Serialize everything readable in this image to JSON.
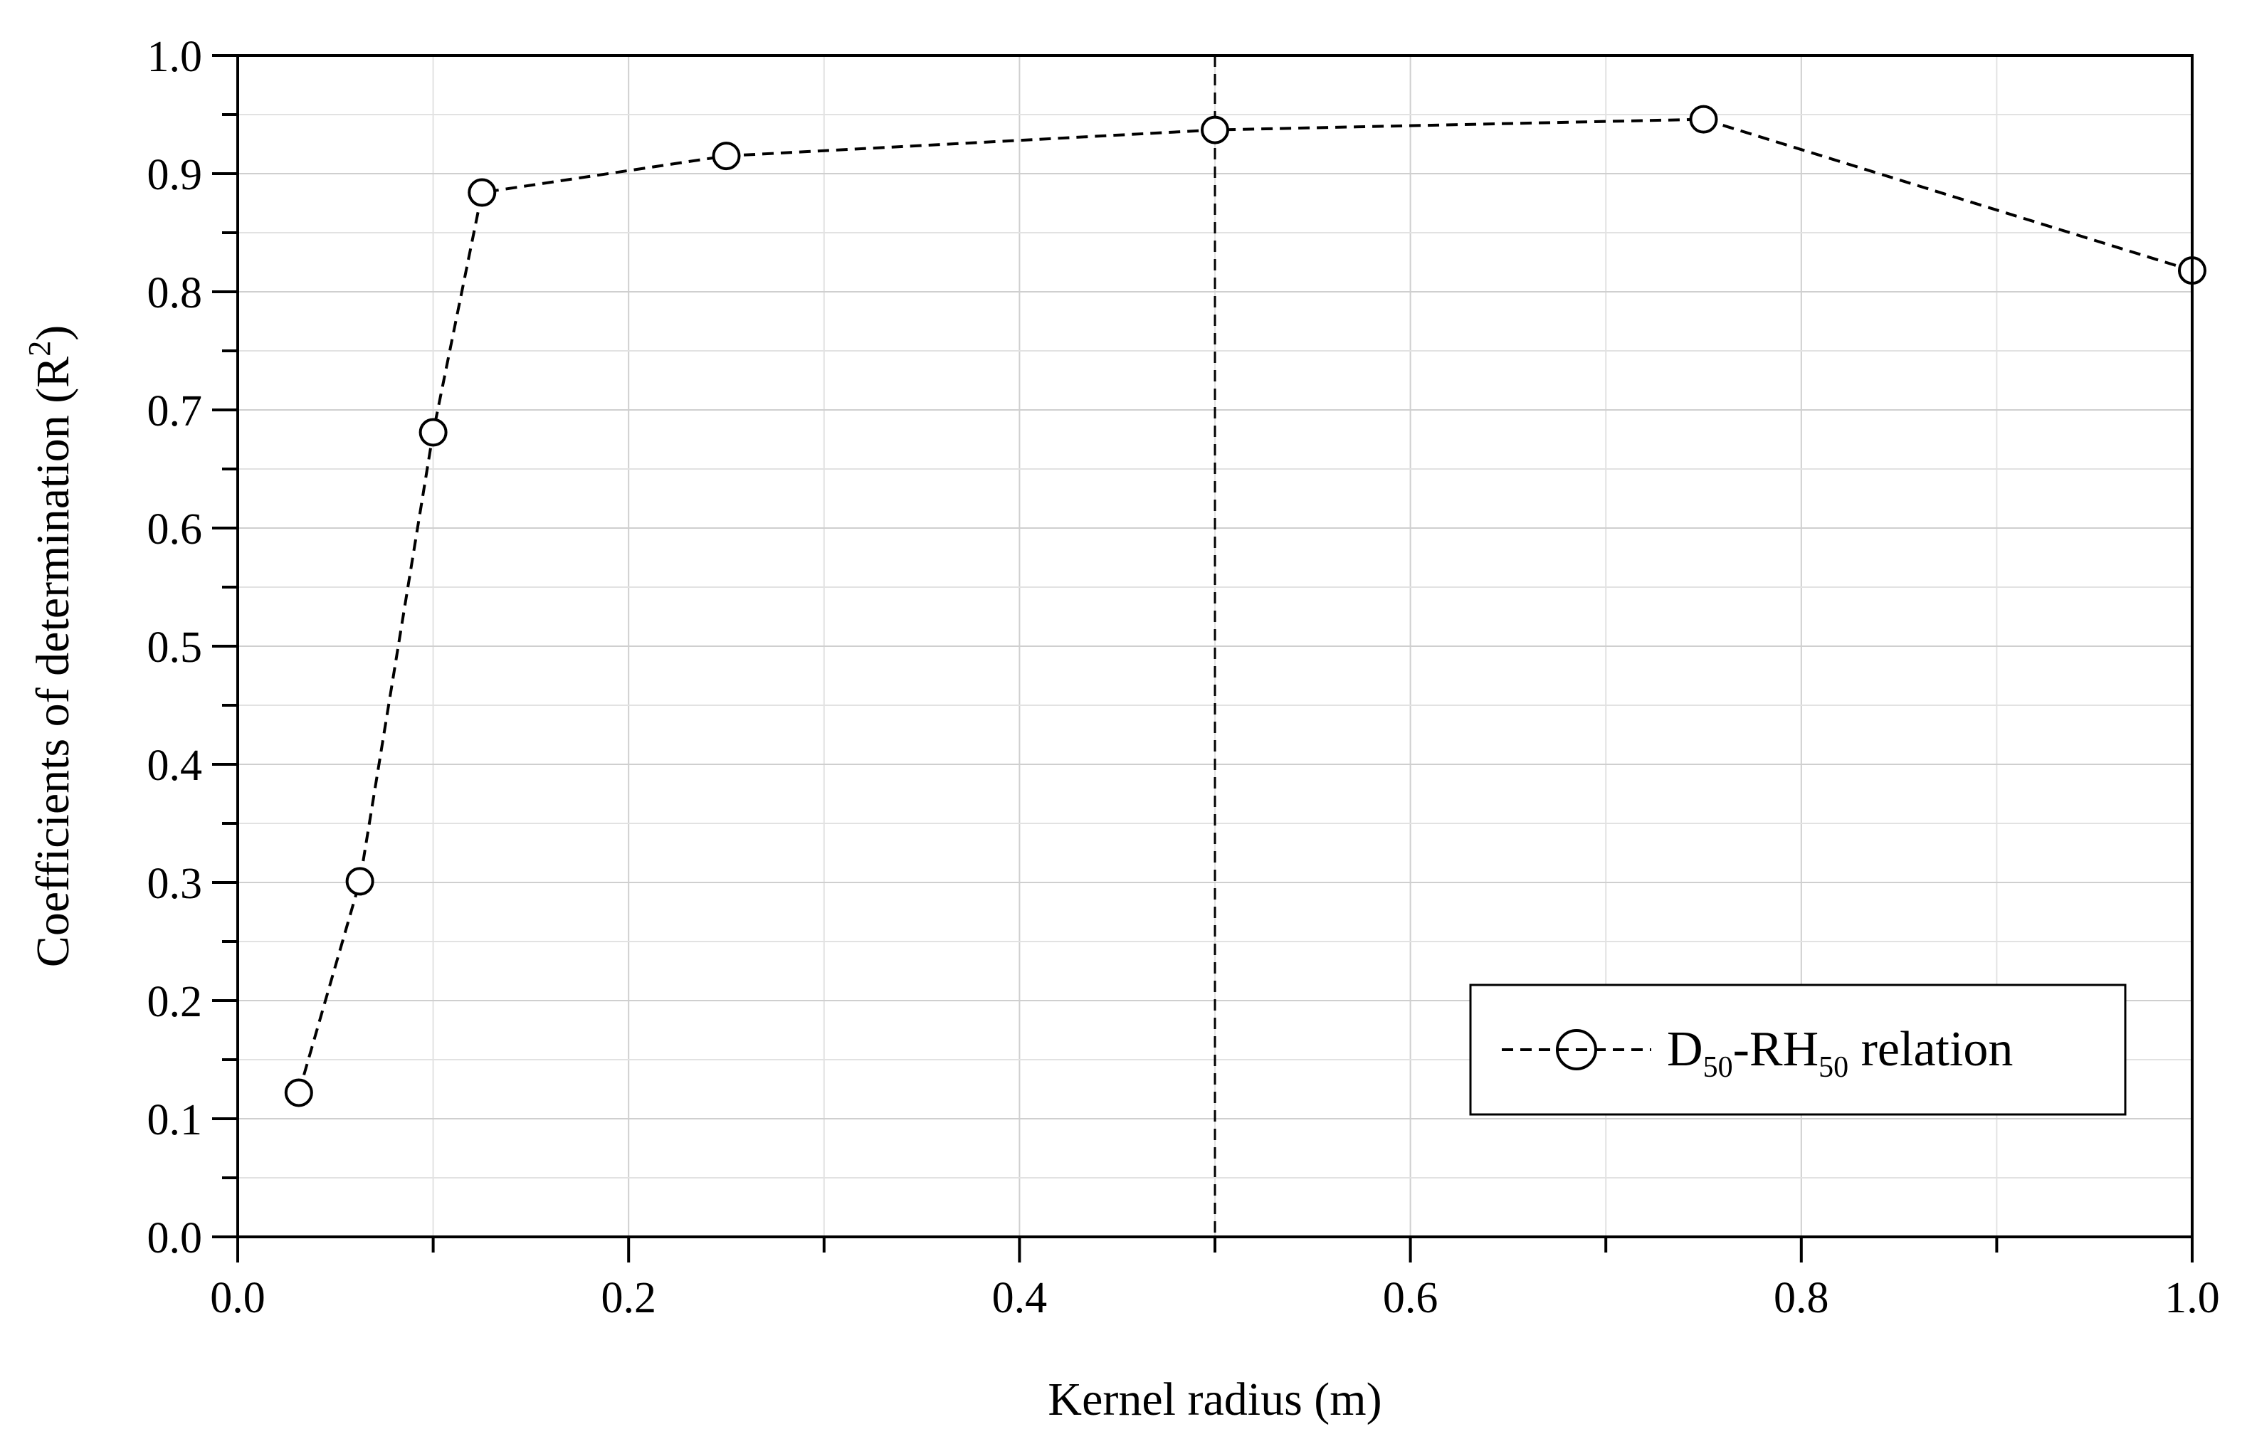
{
  "chart_data": {
    "type": "line",
    "xlabel": "Kernel radius  (m)",
    "ylabel_main": "Coefficients of determination (R",
    "ylabel_sup": "2",
    "ylabel_close": ")",
    "xlim": [
      0.0,
      1.0
    ],
    "ylim": [
      0.0,
      1.0
    ],
    "x_ticks": [
      "0.0",
      "0.2",
      "0.4",
      "0.6",
      "0.8",
      "1.0"
    ],
    "y_ticks": [
      "0.0",
      "0.1",
      "0.2",
      "0.3",
      "0.4",
      "0.5",
      "0.6",
      "0.7",
      "0.8",
      "0.9",
      "1.0"
    ],
    "grid": true,
    "reference_line_x": 0.5,
    "legend_position": "bottom-right",
    "series": [
      {
        "legend": {
          "p1": "D",
          "s1": "50",
          "p2": "-RH",
          "s2": "50",
          "p3": " relation"
        },
        "marker": "open-circle",
        "line_style": "dashed",
        "x": [
          0.03125,
          0.0625,
          0.1,
          0.125,
          0.25,
          0.5,
          0.75,
          1.0
        ],
        "y": [
          0.122,
          0.301,
          0.681,
          0.884,
          0.915,
          0.937,
          0.946,
          0.818
        ]
      }
    ]
  }
}
